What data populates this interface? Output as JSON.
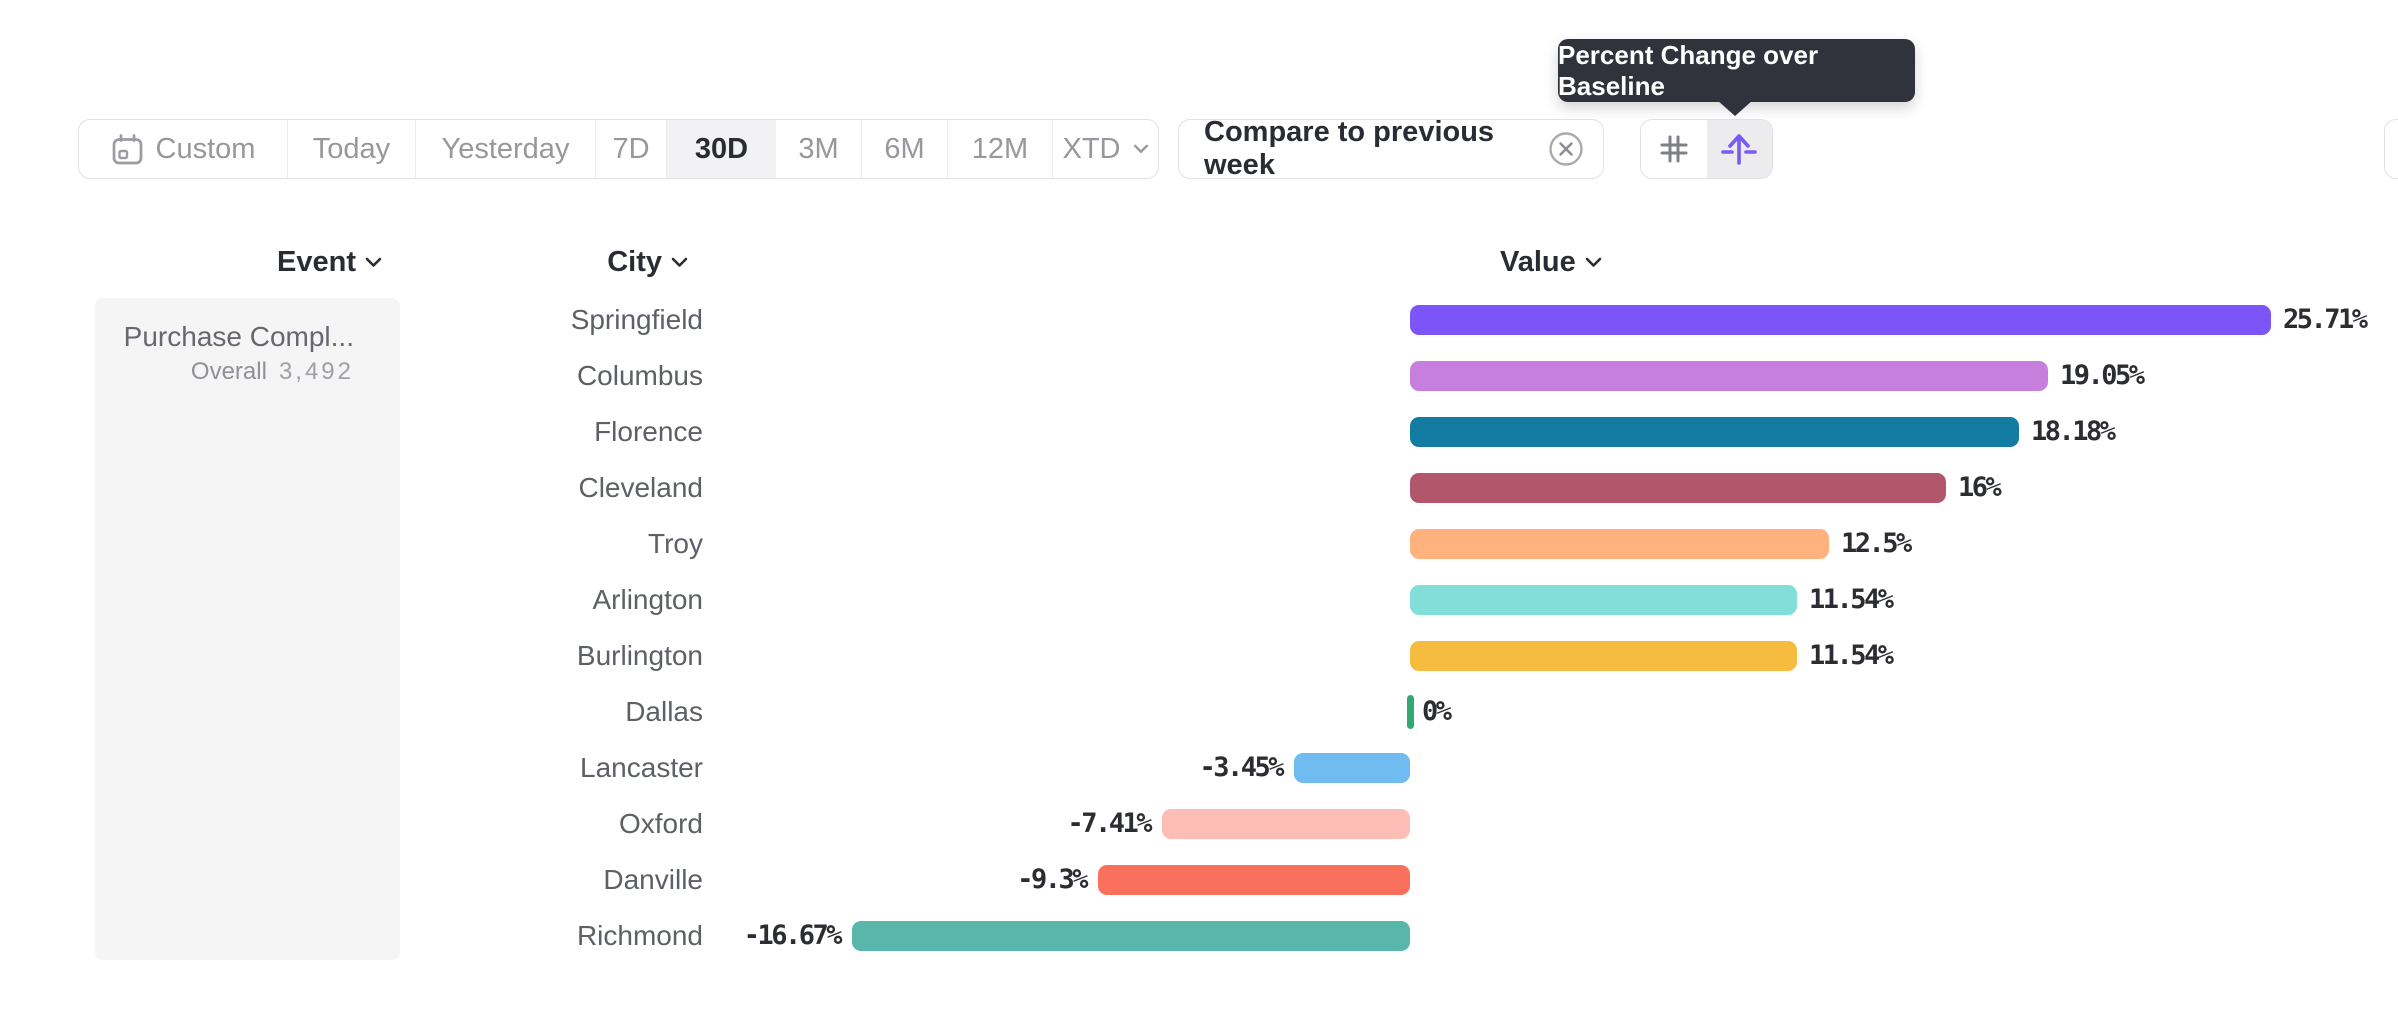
{
  "tooltip": {
    "text": "Percent Change over Baseline"
  },
  "toolbar": {
    "date_ranges": [
      {
        "label": "Custom",
        "selected": false,
        "has_icon": true
      },
      {
        "label": "Today",
        "selected": false
      },
      {
        "label": "Yesterday",
        "selected": false
      },
      {
        "label": "7D",
        "selected": false
      },
      {
        "label": "30D",
        "selected": true
      },
      {
        "label": "3M",
        "selected": false
      },
      {
        "label": "6M",
        "selected": false
      },
      {
        "label": "12M",
        "selected": false
      },
      {
        "label": "XTD",
        "selected": false,
        "has_chevron": true
      }
    ],
    "compare_chip": {
      "label": "Compare to previous week"
    },
    "view_toggle": [
      {
        "icon": "hash-icon",
        "selected": false
      },
      {
        "icon": "baseline-arrow-icon",
        "selected": true
      }
    ]
  },
  "table": {
    "columns": [
      {
        "label": "Event"
      },
      {
        "label": "City"
      },
      {
        "label": "Value"
      }
    ],
    "event_cell": {
      "title": "Purchase Compl...",
      "overall_label": "Overall",
      "overall_value": "3,492"
    },
    "rows": [
      {
        "city": "Springfield",
        "value": 25.71,
        "label": "25.71%",
        "color": "#7b55f7"
      },
      {
        "city": "Columbus",
        "value": 19.05,
        "label": "19.05%",
        "color": "#c77fdd"
      },
      {
        "city": "Florence",
        "value": 18.18,
        "label": "18.18%",
        "color": "#147ca3"
      },
      {
        "city": "Cleveland",
        "value": 16,
        "label": "16%",
        "color": "#b2566b"
      },
      {
        "city": "Troy",
        "value": 12.5,
        "label": "12.5%",
        "color": "#ffb27e"
      },
      {
        "city": "Arlington",
        "value": 11.54,
        "label": "11.54%",
        "color": "#81ded9"
      },
      {
        "city": "Burlington",
        "value": 11.54,
        "label": "11.54%",
        "color": "#f5bc40"
      },
      {
        "city": "Dallas",
        "value": 0,
        "label": "0%",
        "color": "#33a873"
      },
      {
        "city": "Lancaster",
        "value": -3.45,
        "label": "-3.45%",
        "color": "#70bcf0"
      },
      {
        "city": "Oxford",
        "value": -7.41,
        "label": "-7.41%",
        "color": "#fcbdb6"
      },
      {
        "city": "Danville",
        "value": -9.3,
        "label": "-9.3%",
        "color": "#f9715c"
      },
      {
        "city": "Richmond",
        "value": -16.67,
        "label": "-16.67%",
        "color": "#58b6ab"
      }
    ]
  },
  "chart_data": {
    "type": "bar",
    "orientation": "horizontal",
    "title": "Percent Change over Baseline",
    "categories": [
      "Springfield",
      "Columbus",
      "Florence",
      "Cleveland",
      "Troy",
      "Arlington",
      "Burlington",
      "Dallas",
      "Lancaster",
      "Oxford",
      "Danville",
      "Richmond"
    ],
    "values": [
      25.71,
      19.05,
      18.18,
      16,
      12.5,
      11.54,
      11.54,
      0,
      -3.45,
      -7.41,
      -9.3,
      -16.67
    ],
    "unit": "%",
    "baseline": 0,
    "xlabel": "Value",
    "ylabel": "City",
    "grid": false,
    "bar_colors": [
      "#7b55f7",
      "#c77fdd",
      "#147ca3",
      "#b2566b",
      "#ffb27e",
      "#81ded9",
      "#f5bc40",
      "#33a873",
      "#70bcf0",
      "#fcbdb6",
      "#f9715c",
      "#58b6ab"
    ]
  }
}
